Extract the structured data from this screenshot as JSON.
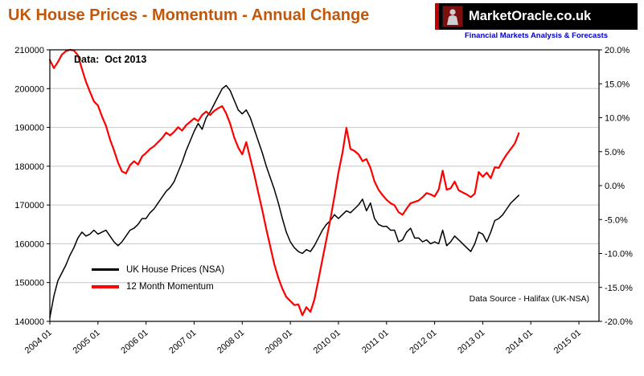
{
  "header": {
    "title": "UK House Prices - Momentum - Annual Change",
    "logo_text": "MarketOracle.co.uk",
    "tagline": "Financial Markets Analysis & Forecasts"
  },
  "annotations": {
    "data_label": "Data:  Oct 2013",
    "source_label": "Data Source - Halifax  (UK-NSA)"
  },
  "colors": {
    "title": "#C2570A",
    "tagline": "#0000CC",
    "logo_bg": "#000000",
    "logo_text": "#FFFFFF",
    "logo_accent": "#C00000",
    "gridline": "#C6C6C6",
    "axis": "#000000",
    "plot_bg": "#FFFFFF"
  },
  "legend": [
    {
      "label": "UK House Prices (NSA)"
    },
    {
      "label": "12 Month Momentum"
    }
  ],
  "chart_data": {
    "type": "line",
    "title": "UK House Prices - Momentum - Annual Change",
    "subtitle": "Data: Oct 2013",
    "source": "Data Source - Halifax (UK-NSA)",
    "x_start": "2004 01",
    "x_end_of_data": "2013 10",
    "months_per_point": 1,
    "x_domain_months": 137,
    "x_tick_labels": [
      "2004 01",
      "2005 01",
      "2006 01",
      "2007 01",
      "2008 01",
      "2009 01",
      "2010 01",
      "2011 01",
      "2012 01",
      "2013 01",
      "2014 01",
      "2015 01"
    ],
    "left_axis": {
      "min": 140000,
      "max": 210000,
      "step": 10000,
      "label_format": "integer"
    },
    "right_axis": {
      "min": -20,
      "max": 20,
      "step": 5,
      "label_format": "percent_1dp"
    },
    "grid": "horizontal",
    "legend_position": "inside-lower-left",
    "series": [
      {
        "name": "UK House Prices (NSA)",
        "axis": "left",
        "color": "#000000",
        "width": 1.5,
        "values": [
          141000,
          146500,
          150500,
          152500,
          154500,
          157000,
          159000,
          161500,
          163000,
          162000,
          162500,
          163500,
          162500,
          163000,
          163500,
          162000,
          160500,
          159500,
          160500,
          162000,
          163500,
          164000,
          165000,
          166500,
          166500,
          168000,
          169000,
          170500,
          172000,
          173500,
          174500,
          176000,
          178500,
          181000,
          184000,
          186500,
          189000,
          191000,
          189500,
          192500,
          194000,
          196000,
          198000,
          200000,
          200800,
          199500,
          197000,
          194500,
          193500,
          194500,
          192500,
          189500,
          186500,
          183500,
          180000,
          177000,
          174000,
          170500,
          166500,
          163000,
          160500,
          159000,
          158000,
          157500,
          158500,
          158000,
          159500,
          161500,
          163500,
          165000,
          166000,
          167500,
          166500,
          167500,
          168500,
          168000,
          169000,
          170000,
          171500,
          168500,
          170500,
          166500,
          165000,
          164500,
          164500,
          163500,
          163500,
          160500,
          161000,
          163000,
          164000,
          161500,
          161500,
          160500,
          161000,
          160000,
          160500,
          160000,
          163500,
          159500,
          160500,
          162000,
          161000,
          160000,
          159000,
          158000,
          160000,
          163000,
          162500,
          160500,
          163000,
          166000,
          166500,
          167500,
          169000,
          170500,
          171500,
          172500
        ]
      },
      {
        "name": "12 Month Momentum",
        "axis": "right",
        "color": "#FF0000",
        "width": 2.2,
        "values": [
          18.5,
          17.3,
          18.2,
          19.3,
          19.8,
          20.0,
          19.9,
          19.2,
          17.2,
          15.3,
          13.8,
          12.4,
          11.8,
          10.2,
          8.8,
          6.8,
          5.2,
          3.4,
          2.1,
          1.8,
          3.0,
          3.6,
          3.1,
          4.3,
          4.8,
          5.4,
          5.8,
          6.4,
          7.0,
          7.8,
          7.4,
          7.9,
          8.6,
          8.1,
          8.9,
          9.4,
          9.9,
          9.5,
          10.4,
          10.9,
          10.4,
          11.0,
          11.4,
          11.7,
          10.6,
          9.1,
          7.1,
          5.6,
          4.6,
          6.4,
          4.0,
          1.6,
          -1.0,
          -3.6,
          -6.4,
          -9.0,
          -11.6,
          -13.6,
          -15.2,
          -16.4,
          -17.0,
          -17.6,
          -17.5,
          -19.1,
          -17.9,
          -18.6,
          -16.8,
          -13.9,
          -10.9,
          -7.9,
          -4.9,
          -1.6,
          1.9,
          4.8,
          8.5,
          5.4,
          5.1,
          4.6,
          3.6,
          3.9,
          2.6,
          0.6,
          -0.6,
          -1.4,
          -2.1,
          -2.6,
          -2.9,
          -3.9,
          -4.3,
          -3.4,
          -2.6,
          -2.4,
          -2.2,
          -1.7,
          -1.1,
          -1.3,
          -1.6,
          -0.6,
          2.2,
          -0.6,
          -0.4,
          0.6,
          -0.7,
          -1.0,
          -1.3,
          -1.7,
          -1.2,
          2.0,
          1.3,
          1.9,
          1.1,
          2.7,
          2.6,
          3.7,
          4.6,
          5.4,
          6.2,
          7.7
        ]
      }
    ]
  }
}
